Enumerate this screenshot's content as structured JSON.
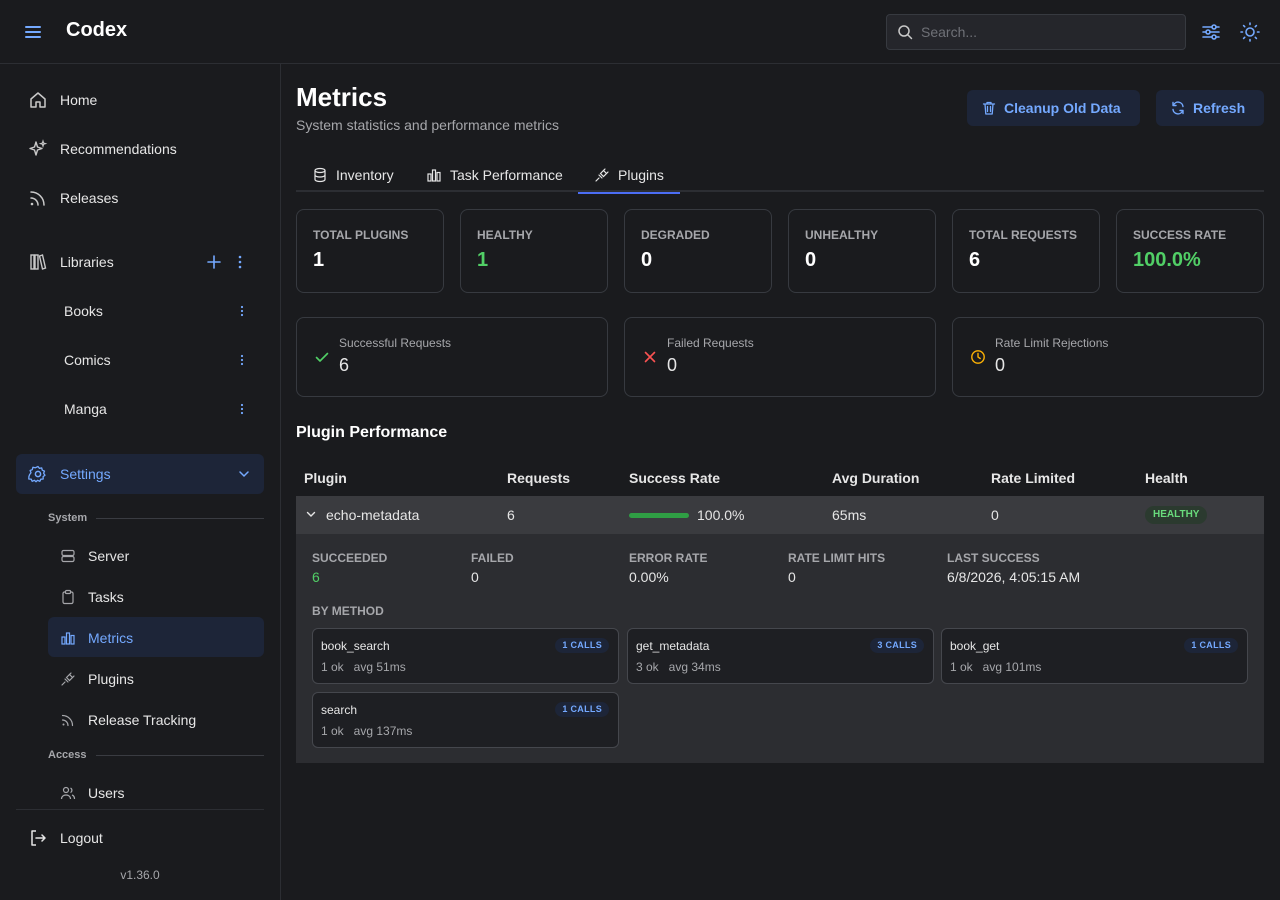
{
  "header": {
    "brand": "Codex",
    "search_placeholder": "Search..."
  },
  "sidebar": {
    "main": [
      {
        "label": "Home",
        "icon": "home-icon"
      },
      {
        "label": "Recommendations",
        "icon": "sparkles-icon"
      },
      {
        "label": "Releases",
        "icon": "rss-icon"
      }
    ],
    "libraries_label": "Libraries",
    "libraries": [
      "Books",
      "Comics",
      "Manga"
    ],
    "settings_label": "Settings",
    "system_label": "System",
    "system_items": [
      "Server",
      "Tasks",
      "Metrics",
      "Plugins",
      "Release Tracking"
    ],
    "access_label": "Access",
    "access_items": [
      "Users"
    ],
    "logout_label": "Logout",
    "version": "v1.36.0",
    "active_item": "Metrics"
  },
  "page": {
    "title": "Metrics",
    "subtitle": "System statistics and performance metrics",
    "cleanup_label": "Cleanup Old Data",
    "refresh_label": "Refresh"
  },
  "tabs": [
    {
      "label": "Inventory",
      "icon": "database-icon"
    },
    {
      "label": "Task Performance",
      "icon": "bar-chart-icon"
    },
    {
      "label": "Plugins",
      "icon": "plug-icon"
    }
  ],
  "active_tab": "Plugins",
  "stats": [
    {
      "label": "Total Plugins",
      "value": "1"
    },
    {
      "label": "Healthy",
      "value": "1"
    },
    {
      "label": "Degraded",
      "value": "0"
    },
    {
      "label": "Unhealthy",
      "value": "0"
    },
    {
      "label": "Total Requests",
      "value": "6"
    },
    {
      "label": "Success Rate",
      "value": "100.0%"
    }
  ],
  "requests": [
    {
      "label": "Successful Requests",
      "value": "6",
      "icon": "check-icon"
    },
    {
      "label": "Failed Requests",
      "value": "0",
      "icon": "x-icon"
    },
    {
      "label": "Rate Limit Rejections",
      "value": "0",
      "icon": "clock-icon"
    }
  ],
  "performance": {
    "title": "Plugin Performance",
    "columns": [
      "Plugin",
      "Requests",
      "Success Rate",
      "Avg Duration",
      "Rate Limited",
      "Health"
    ],
    "rows": [
      {
        "plugin": "echo-metadata",
        "requests": "6",
        "success_rate": "100.0%",
        "success_fraction": 1.0,
        "avg_duration": "65ms",
        "rate_limited": "0",
        "health": "HEALTHY"
      }
    ],
    "detail": {
      "fields": [
        {
          "label": "SUCCEEDED",
          "value": "6"
        },
        {
          "label": "FAILED",
          "value": "0"
        },
        {
          "label": "ERROR RATE",
          "value": "0.00%"
        },
        {
          "label": "RATE LIMIT HITS",
          "value": "0"
        },
        {
          "label": "LAST SUCCESS",
          "value": "6/8/2026, 4:05:15 AM"
        }
      ],
      "by_method_label": "BY METHOD",
      "methods": [
        {
          "name": "book_search",
          "calls": "1 CALLS",
          "stats": "1 ok   avg 51ms"
        },
        {
          "name": "get_metadata",
          "calls": "3 CALLS",
          "stats": "3 ok   avg 34ms"
        },
        {
          "name": "book_get",
          "calls": "1 CALLS",
          "stats": "1 ok   avg 101ms"
        },
        {
          "name": "search",
          "calls": "1 CALLS",
          "stats": "1 ok   avg 137ms"
        }
      ]
    }
  },
  "colors": {
    "accent": "#74a9ff",
    "success": "#51cf66",
    "error": "#fa5252",
    "warning": "#fab005"
  }
}
